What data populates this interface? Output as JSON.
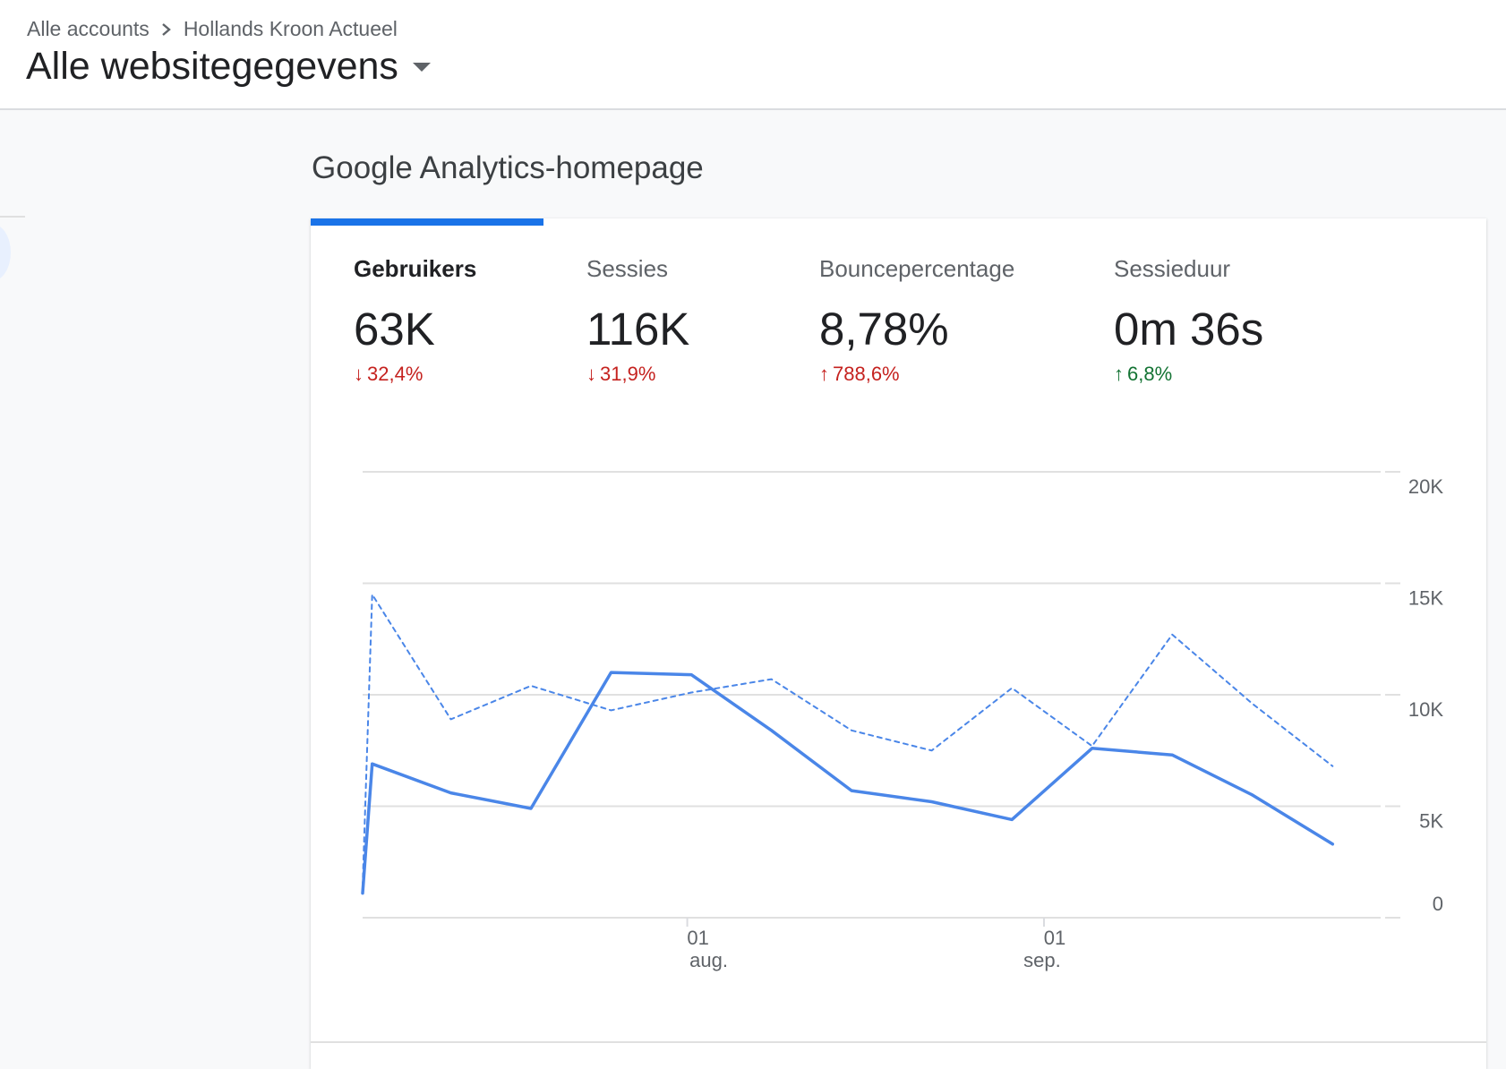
{
  "header": {
    "breadcrumb": {
      "account": "Alle accounts",
      "property": "Hollands Kroon Actueel"
    },
    "view_title": "Alle websitegegevens"
  },
  "section_title": "Google Analytics-homepage",
  "metrics": [
    {
      "label": "Gebruikers",
      "value": "63K",
      "change": "32,4%",
      "direction": "down",
      "color": "#c5221f"
    },
    {
      "label": "Sessies",
      "value": "116K",
      "change": "31,9%",
      "direction": "down",
      "color": "#c5221f"
    },
    {
      "label": "Bouncepercentage",
      "value": "8,78%",
      "change": "788,6%",
      "direction": "up",
      "color": "#c5221f"
    },
    {
      "label": "Sessieduur",
      "value": "0m 36s",
      "change": "6,8%",
      "direction": "up",
      "color": "#137333"
    }
  ],
  "colors": {
    "accent": "#1a73e8",
    "series_line": "#4a86e8",
    "negative": "#c5221f",
    "positive": "#137333"
  },
  "chart_data": {
    "type": "line",
    "y_ticks": [
      "20K",
      "15K",
      "10K",
      "5K",
      "0"
    ],
    "ylim": [
      0,
      20000
    ],
    "x_ticks": [
      {
        "label_line1": "01",
        "label_line2": "aug.",
        "x": 4.05
      },
      {
        "label_line1": "01",
        "label_line2": "sep.",
        "x": 8.5
      }
    ],
    "xlim": [
      0,
      12.7
    ],
    "series": [
      {
        "style": "solid",
        "points": [
          [
            0,
            1100
          ],
          [
            0.12,
            6900
          ],
          [
            1.1,
            5600
          ],
          [
            2.1,
            4900
          ],
          [
            3.1,
            11000
          ],
          [
            4.1,
            10900
          ],
          [
            5.1,
            8400
          ],
          [
            6.1,
            5700
          ],
          [
            7.1,
            5200
          ],
          [
            8.1,
            4400
          ],
          [
            9.1,
            7600
          ],
          [
            10.1,
            7300
          ],
          [
            11.1,
            5500
          ],
          [
            12.1,
            3300
          ]
        ]
      },
      {
        "style": "dashed",
        "points": [
          [
            0,
            1400
          ],
          [
            0.12,
            14500
          ],
          [
            1.1,
            8900
          ],
          [
            2.1,
            10400
          ],
          [
            3.1,
            9300
          ],
          [
            4.1,
            10100
          ],
          [
            5.1,
            10700
          ],
          [
            6.1,
            8400
          ],
          [
            7.1,
            7500
          ],
          [
            8.1,
            10300
          ],
          [
            9.1,
            7700
          ],
          [
            10.1,
            12700
          ],
          [
            11.1,
            9600
          ],
          [
            12.1,
            6800
          ]
        ]
      }
    ]
  }
}
